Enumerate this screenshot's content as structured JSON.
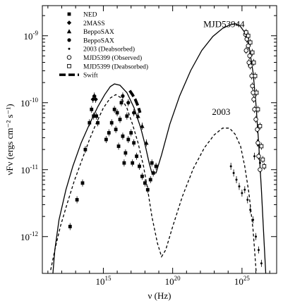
{
  "chart_data": {
    "type": "scatter",
    "title": "",
    "xlabel": "ν (Hz)",
    "ylabel": "νFν (ergs cm⁻² s⁻¹)",
    "x_scale": "log",
    "y_scale": "log",
    "xlim_log10": [
      10.6,
      27.5
    ],
    "ylim_log10": [
      -12.55,
      -8.55
    ],
    "x_tick_labels": [
      {
        "base": "10",
        "exp": "15",
        "log10": 15
      },
      {
        "base": "10",
        "exp": "20",
        "log10": 20
      },
      {
        "base": "10",
        "exp": "25",
        "log10": 25
      }
    ],
    "y_tick_labels": [
      {
        "base": "10",
        "exp": "-12",
        "log10": -12
      },
      {
        "base": "10",
        "exp": "-11",
        "log10": -11
      },
      {
        "base": "10",
        "exp": "-10",
        "log10": -10
      },
      {
        "base": "10",
        "exp": "-9",
        "log10": -9
      }
    ],
    "legend": [
      {
        "label": "NED",
        "marker": "square-filled"
      },
      {
        "label": "2MASS",
        "marker": "diamond-filled"
      },
      {
        "label": "BeppoSAX",
        "marker": "triangle-filled"
      },
      {
        "label": "BeppoSAX",
        "marker": "circle-filled"
      },
      {
        "label": "2003 (Deabsorbed)",
        "marker": "dot"
      },
      {
        "label": "MJD5399 (Observed)",
        "marker": "circle-open"
      },
      {
        "label": "MJD5399 (Deabsorbed)",
        "marker": "square-open"
      },
      {
        "label": "Swift",
        "marker": "dash-line"
      }
    ],
    "annotations": [
      {
        "text": "MJD53944",
        "x_log10": 23.7,
        "y_log10": -8.87
      },
      {
        "text": "2003",
        "x_log10": 23.5,
        "y_log10": -10.18
      }
    ],
    "series": [
      {
        "name": "MJD53944",
        "style": "solid",
        "points": [
          [
            11.3,
            -12.7
          ],
          [
            11.5,
            -12.2
          ],
          [
            11.8,
            -11.75
          ],
          [
            12.3,
            -11.3
          ],
          [
            12.8,
            -10.95
          ],
          [
            13.4,
            -10.6
          ],
          [
            14.0,
            -10.32
          ],
          [
            14.6,
            -10.06
          ],
          [
            15.1,
            -9.88
          ],
          [
            15.5,
            -9.76
          ],
          [
            15.8,
            -9.72
          ],
          [
            16.2,
            -9.74
          ],
          [
            16.7,
            -9.85
          ],
          [
            17.2,
            -10.07
          ],
          [
            17.7,
            -10.38
          ],
          [
            18.0,
            -10.62
          ],
          [
            18.3,
            -10.9
          ],
          [
            18.5,
            -11.05
          ],
          [
            18.8,
            -11.05
          ],
          [
            19.2,
            -10.78
          ],
          [
            19.8,
            -10.32
          ],
          [
            20.5,
            -9.9
          ],
          [
            21.3,
            -9.52
          ],
          [
            22.1,
            -9.22
          ],
          [
            22.9,
            -9.01
          ],
          [
            23.6,
            -8.89
          ],
          [
            24.1,
            -8.84
          ],
          [
            24.5,
            -8.82
          ],
          [
            24.85,
            -8.85
          ],
          [
            25.2,
            -8.95
          ],
          [
            25.5,
            -9.15
          ],
          [
            25.8,
            -9.55
          ],
          [
            26.0,
            -10.0
          ],
          [
            26.2,
            -10.6
          ],
          [
            26.4,
            -11.3
          ],
          [
            26.6,
            -12.1
          ],
          [
            26.75,
            -12.7
          ]
        ]
      },
      {
        "name": "2003",
        "style": "dashed",
        "points": [
          [
            11.2,
            -12.5
          ],
          [
            11.5,
            -12.2
          ],
          [
            11.9,
            -11.85
          ],
          [
            12.4,
            -11.5
          ],
          [
            12.9,
            -11.17
          ],
          [
            13.5,
            -10.83
          ],
          [
            14.0,
            -10.55
          ],
          [
            14.5,
            -10.3
          ],
          [
            15.0,
            -10.08
          ],
          [
            15.5,
            -9.93
          ],
          [
            15.9,
            -9.88
          ],
          [
            16.3,
            -9.93
          ],
          [
            16.7,
            -10.08
          ],
          [
            17.1,
            -10.32
          ],
          [
            17.5,
            -10.6
          ],
          [
            17.9,
            -10.95
          ],
          [
            18.2,
            -11.3
          ],
          [
            18.5,
            -11.7
          ],
          [
            18.9,
            -12.1
          ],
          [
            19.2,
            -12.3
          ],
          [
            19.5,
            -12.2
          ],
          [
            20.0,
            -11.85
          ],
          [
            20.7,
            -11.4
          ],
          [
            21.5,
            -10.98
          ],
          [
            22.3,
            -10.67
          ],
          [
            23.0,
            -10.48
          ],
          [
            23.6,
            -10.38
          ],
          [
            24.1,
            -10.38
          ],
          [
            24.5,
            -10.47
          ],
          [
            24.9,
            -10.65
          ],
          [
            25.2,
            -10.95
          ],
          [
            25.5,
            -11.35
          ],
          [
            25.8,
            -11.9
          ],
          [
            26.05,
            -12.6
          ]
        ]
      },
      {
        "name": "Swift",
        "style": "thick-dash",
        "points": [
          [
            16.9,
            -9.82
          ],
          [
            17.1,
            -9.88
          ],
          [
            17.3,
            -9.95
          ],
          [
            17.5,
            -10.05
          ],
          [
            17.65,
            -10.15
          ]
        ]
      }
    ],
    "data_points": {
      "NED": {
        "marker": "square-filled",
        "points": [
          [
            12.6,
            -11.85
          ],
          [
            13.1,
            -11.45
          ],
          [
            13.5,
            -11.2
          ],
          [
            13.7,
            -10.7
          ],
          [
            14.0,
            -10.3
          ],
          [
            14.15,
            -10.1
          ],
          [
            14.3,
            -10.2
          ],
          [
            14.5,
            -10.2
          ],
          [
            14.6,
            -10.3
          ],
          [
            15.2,
            -10.55
          ],
          [
            15.4,
            -10.45
          ],
          [
            15.6,
            -10.3
          ],
          [
            15.8,
            -10.1
          ],
          [
            16.0,
            -10.15
          ],
          [
            16.2,
            -10.25
          ],
          [
            16.4,
            -10.5
          ],
          [
            16.6,
            -10.75
          ],
          [
            16.8,
            -10.55
          ],
          [
            17.0,
            -10.45
          ],
          [
            17.2,
            -10.6
          ],
          [
            17.4,
            -10.8
          ],
          [
            17.6,
            -10.95
          ],
          [
            17.8,
            -11.1
          ],
          [
            18.0,
            -11.2
          ],
          [
            18.2,
            -11.3
          ],
          [
            18.4,
            -11.15
          ],
          [
            18.5,
            -10.9
          ],
          [
            18.6,
            -11.05
          ],
          [
            18.8,
            -10.95
          ],
          [
            16.1,
            -10.65
          ],
          [
            16.5,
            -10.9
          ],
          [
            17.1,
            -10.9
          ],
          [
            15.9,
            -10.4
          ],
          [
            16.3,
            -10.0
          ],
          [
            16.7,
            -10.2
          ]
        ]
      },
      "2MASS": {
        "marker": "diamond-filled",
        "points": [
          [
            14.25,
            -9.95
          ],
          [
            14.35,
            -9.9
          ],
          [
            14.45,
            -9.95
          ]
        ]
      },
      "BeppoSAX_tri": {
        "marker": "triangle-filled",
        "points": [
          [
            17.5,
            -10.2
          ],
          [
            17.8,
            -10.35
          ],
          [
            18.1,
            -10.6
          ]
        ]
      },
      "BeppoSAX_circ": {
        "marker": "circle-filled",
        "points": [
          [
            16.4,
            -9.9
          ],
          [
            16.8,
            -10.0
          ],
          [
            17.2,
            -10.15
          ]
        ]
      },
      "2003_deabs": {
        "marker": "dot",
        "points": [
          [
            24.2,
            -10.95
          ],
          [
            24.4,
            -11.05
          ],
          [
            24.6,
            -11.15
          ],
          [
            24.8,
            -11.25
          ],
          [
            25.0,
            -11.35
          ],
          [
            25.2,
            -11.3
          ],
          [
            25.4,
            -11.45
          ],
          [
            25.6,
            -11.6
          ],
          [
            25.8,
            -11.75
          ],
          [
            26.0,
            -12.0
          ],
          [
            26.2,
            -12.2
          ],
          [
            26.4,
            -12.4
          ],
          [
            25.9,
            -10.8
          ],
          [
            26.1,
            -10.6
          ],
          [
            26.3,
            -10.9
          ]
        ]
      },
      "MJD_obs": {
        "marker": "circle-open",
        "points": [
          [
            25.25,
            -8.98
          ],
          [
            25.35,
            -9.05
          ],
          [
            25.45,
            -9.15
          ],
          [
            25.55,
            -9.3
          ],
          [
            25.6,
            -9.45
          ],
          [
            25.7,
            -9.6
          ],
          [
            25.75,
            -9.75
          ],
          [
            25.8,
            -9.85
          ],
          [
            25.85,
            -9.95
          ],
          [
            25.9,
            -10.1
          ],
          [
            26.0,
            -10.25
          ],
          [
            26.1,
            -10.4
          ],
          [
            26.15,
            -10.6
          ],
          [
            26.2,
            -10.8
          ],
          [
            26.3,
            -11.0
          ],
          [
            25.3,
            -9.22
          ],
          [
            25.5,
            -9.4
          ]
        ]
      },
      "MJD_deabs": {
        "marker": "square-open",
        "points": [
          [
            25.3,
            -8.95
          ],
          [
            25.45,
            -9.0
          ],
          [
            25.6,
            -9.1
          ],
          [
            25.75,
            -9.25
          ],
          [
            25.85,
            -9.4
          ],
          [
            25.95,
            -9.6
          ],
          [
            26.05,
            -9.85
          ],
          [
            26.15,
            -10.1
          ],
          [
            26.3,
            -10.35
          ],
          [
            26.4,
            -10.65
          ],
          [
            26.5,
            -10.85
          ],
          [
            26.6,
            -10.95
          ]
        ]
      }
    },
    "colors": {
      "ink": "#000000",
      "background": "#ffffff"
    }
  }
}
